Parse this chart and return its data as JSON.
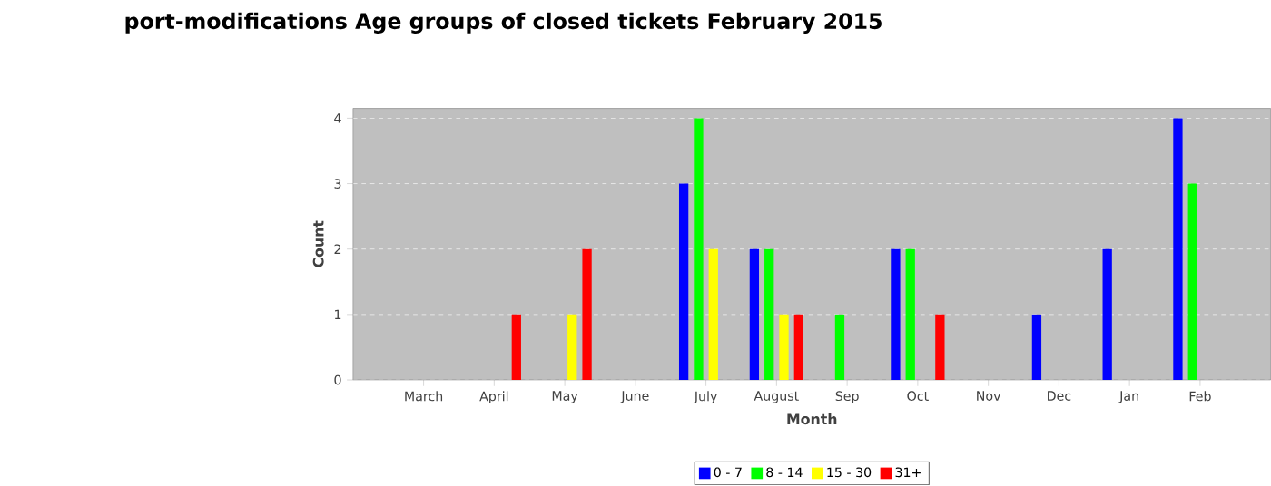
{
  "chart_data": {
    "type": "bar",
    "title": "port-modifications Age groups of closed tickets February 2015",
    "xlabel": "Month",
    "ylabel": "Count",
    "categories": [
      "March",
      "April",
      "May",
      "June",
      "July",
      "August",
      "Sep",
      "Oct",
      "Nov",
      "Dec",
      "Jan",
      "Feb"
    ],
    "series": [
      {
        "name": "0 - 7",
        "color": "#0000ff",
        "values": [
          0,
          0,
          0,
          0,
          3,
          2,
          0,
          2,
          0,
          1,
          2,
          4
        ]
      },
      {
        "name": "8 - 14",
        "color": "#00ff00",
        "values": [
          0,
          0,
          0,
          0,
          4,
          2,
          1,
          2,
          0,
          0,
          0,
          3
        ]
      },
      {
        "name": "15 - 30",
        "color": "#ffff00",
        "values": [
          0,
          0,
          1,
          0,
          2,
          1,
          0,
          0,
          0,
          0,
          0,
          0
        ]
      },
      {
        "name": "31+",
        "color": "#ff0000",
        "values": [
          0,
          1,
          2,
          0,
          0,
          1,
          0,
          1,
          0,
          0,
          0,
          0
        ]
      }
    ],
    "ylim": [
      0,
      4.15
    ],
    "yticks": [
      0,
      1,
      2,
      3,
      4
    ],
    "grid": "y",
    "legend": "bottom"
  }
}
